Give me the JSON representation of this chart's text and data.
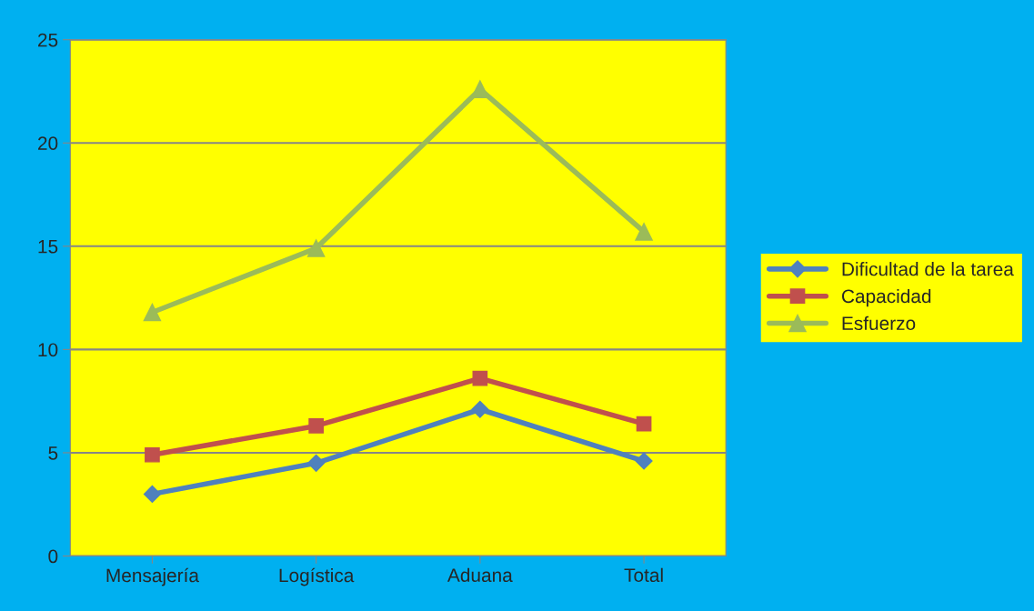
{
  "chart_data": {
    "type": "line",
    "categories": [
      "Mensajería",
      "Logística",
      "Aduana",
      "Total"
    ],
    "series": [
      {
        "name": "Dificultad de la tarea",
        "color": "#4f81bd",
        "marker": "diamond",
        "values": [
          3.0,
          4.5,
          7.1,
          4.6
        ]
      },
      {
        "name": "Capacidad",
        "color": "#c0504d",
        "marker": "square",
        "values": [
          4.9,
          6.3,
          8.6,
          6.4
        ]
      },
      {
        "name": "Esfuerzo",
        "color": "#9bbb59",
        "marker": "triangle",
        "values": [
          11.8,
          14.9,
          22.6,
          15.7
        ]
      }
    ],
    "ylim": [
      0,
      25
    ],
    "yticks": [
      0,
      5,
      10,
      15,
      20,
      25
    ],
    "grid": "y",
    "legend": "right"
  }
}
